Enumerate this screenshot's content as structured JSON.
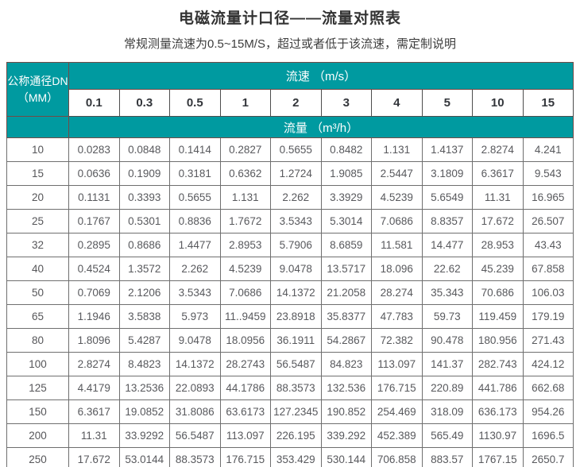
{
  "title": "电磁流量计口径——流量对照表",
  "subtitle": "常规测量流速为0.5~15M/S，超过或者低于该流速，需定制说明",
  "table": {
    "dn_header": "公称通径DN\n（MM）",
    "velocity_header": "流速 （m/s）",
    "flow_header": "流量 （m³/h）"
  },
  "colors": {
    "header_teal": "#009aa0",
    "grid_line": "#6f6f6f",
    "header_border": "#734b47",
    "body_text": "#58595d",
    "title_text": "#333333"
  },
  "chart_data": {
    "type": "table",
    "title": "电磁流量计口径——流量对照表",
    "column_group_label": "流速 （m/s）",
    "row_group_label": "公称通径DN（MM）",
    "value_label": "流量 （m³/h）",
    "velocities": [
      "0.1",
      "0.3",
      "0.5",
      "1",
      "2",
      "3",
      "4",
      "5",
      "10",
      "15"
    ],
    "rows": [
      {
        "dn": "10",
        "values": [
          "0.0283",
          "0.0848",
          "0.1414",
          "0.2827",
          "0.5655",
          "0.8482",
          "1.131",
          "1.4137",
          "2.8274",
          "4.241"
        ]
      },
      {
        "dn": "15",
        "values": [
          "0.0636",
          "0.1909",
          "0.3181",
          "0.6362",
          "1.2724",
          "1.9085",
          "2.5447",
          "3.1809",
          "6.3617",
          "9.543"
        ]
      },
      {
        "dn": "20",
        "values": [
          "0.1131",
          "0.3393",
          "0.5655",
          "1.131",
          "2.262",
          "3.3929",
          "4.5239",
          "5.6549",
          "11.31",
          "16.965"
        ]
      },
      {
        "dn": "25",
        "values": [
          "0.1767",
          "0.5301",
          "0.8836",
          "1.7672",
          "3.5343",
          "5.3014",
          "7.0686",
          "8.8357",
          "17.672",
          "26.507"
        ]
      },
      {
        "dn": "32",
        "values": [
          "0.2895",
          "0.8686",
          "1.4477",
          "2.8953",
          "5.7906",
          "8.6859",
          "11.581",
          "14.477",
          "28.953",
          "43.43"
        ]
      },
      {
        "dn": "40",
        "values": [
          "0.4524",
          "1.3572",
          "2.262",
          "4.5239",
          "9.0478",
          "13.5717",
          "18.096",
          "22.62",
          "45.239",
          "67.858"
        ]
      },
      {
        "dn": "50",
        "values": [
          "0.7069",
          "2.1206",
          "3.5343",
          "7.0686",
          "14.1372",
          "21.2058",
          "28.274",
          "35.343",
          "70.686",
          "106.03"
        ]
      },
      {
        "dn": "65",
        "values": [
          "1.1946",
          "3.5838",
          "5.973",
          "11..9459",
          "23.8918",
          "35.8377",
          "47.783",
          "59.73",
          "119.459",
          "179.19"
        ]
      },
      {
        "dn": "80",
        "values": [
          "1.8096",
          "5.4287",
          "9.0478",
          "18.0956",
          "36.1911",
          "54.2867",
          "72.382",
          "90.478",
          "180.956",
          "271.43"
        ]
      },
      {
        "dn": "100",
        "values": [
          "2.8274",
          "8.4823",
          "14.1372",
          "28.2743",
          "56.5487",
          "84.823",
          "113.097",
          "141.37",
          "282.743",
          "424.12"
        ]
      },
      {
        "dn": "125",
        "values": [
          "4.4179",
          "13.2536",
          "22.0893",
          "44.1786",
          "88.3573",
          "132.536",
          "176.715",
          "220.89",
          "441.786",
          "662.68"
        ]
      },
      {
        "dn": "150",
        "values": [
          "6.3617",
          "19.0852",
          "31.8086",
          "63.6173",
          "127.2345",
          "190.852",
          "254.469",
          "318.09",
          "636.173",
          "954.26"
        ]
      },
      {
        "dn": "200",
        "values": [
          "11.31",
          "33.9292",
          "56.5487",
          "113.097",
          "226.195",
          "339.292",
          "452.389",
          "565.49",
          "1130.97",
          "1696.5"
        ]
      },
      {
        "dn": "250",
        "values": [
          "17.672",
          "53.0144",
          "88.3573",
          "176.715",
          "353.429",
          "530.144",
          "706.858",
          "883.57",
          "1767.15",
          "2650.7"
        ]
      }
    ]
  }
}
